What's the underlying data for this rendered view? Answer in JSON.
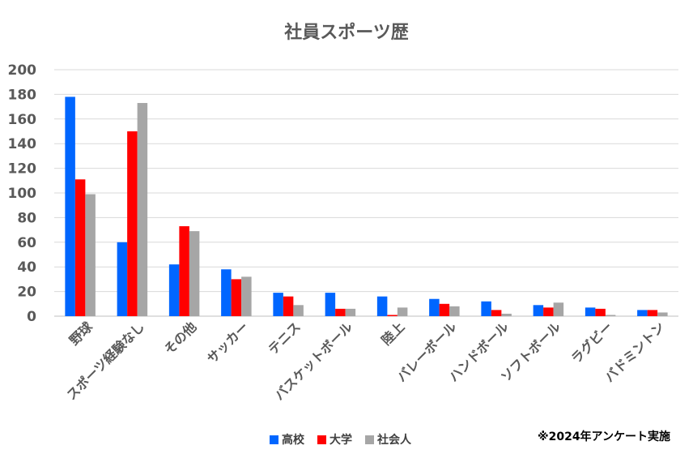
{
  "chart_data": {
    "type": "bar",
    "title": "社員スポーツ歴",
    "footnote": "※2024年アンケート実施",
    "categories": [
      "野球",
      "スポーツ経験なし",
      "その他",
      "サッカー",
      "テニス",
      "バスケットボール",
      "陸上",
      "バレーボール",
      "ハンドボール",
      "ソフトボール",
      "ラグビー",
      "バドミントン"
    ],
    "series": [
      {
        "name": "高校",
        "color": "#0066ff",
        "values": [
          178,
          60,
          42,
          38,
          19,
          19,
          16,
          14,
          12,
          9,
          7,
          5
        ]
      },
      {
        "name": "大学",
        "color": "#ff0000",
        "values": [
          111,
          150,
          73,
          30,
          16,
          6,
          1,
          10,
          5,
          7,
          6,
          5
        ]
      },
      {
        "name": "社会人",
        "color": "#a6a6a6",
        "values": [
          99,
          173,
          69,
          32,
          9,
          6,
          7,
          8,
          2,
          11,
          1,
          3
        ]
      }
    ],
    "ylim": [
      0,
      200
    ],
    "yticks": [
      0,
      20,
      40,
      60,
      80,
      100,
      120,
      140,
      160,
      180,
      200
    ],
    "grid": true,
    "legend_position": "bottom"
  }
}
